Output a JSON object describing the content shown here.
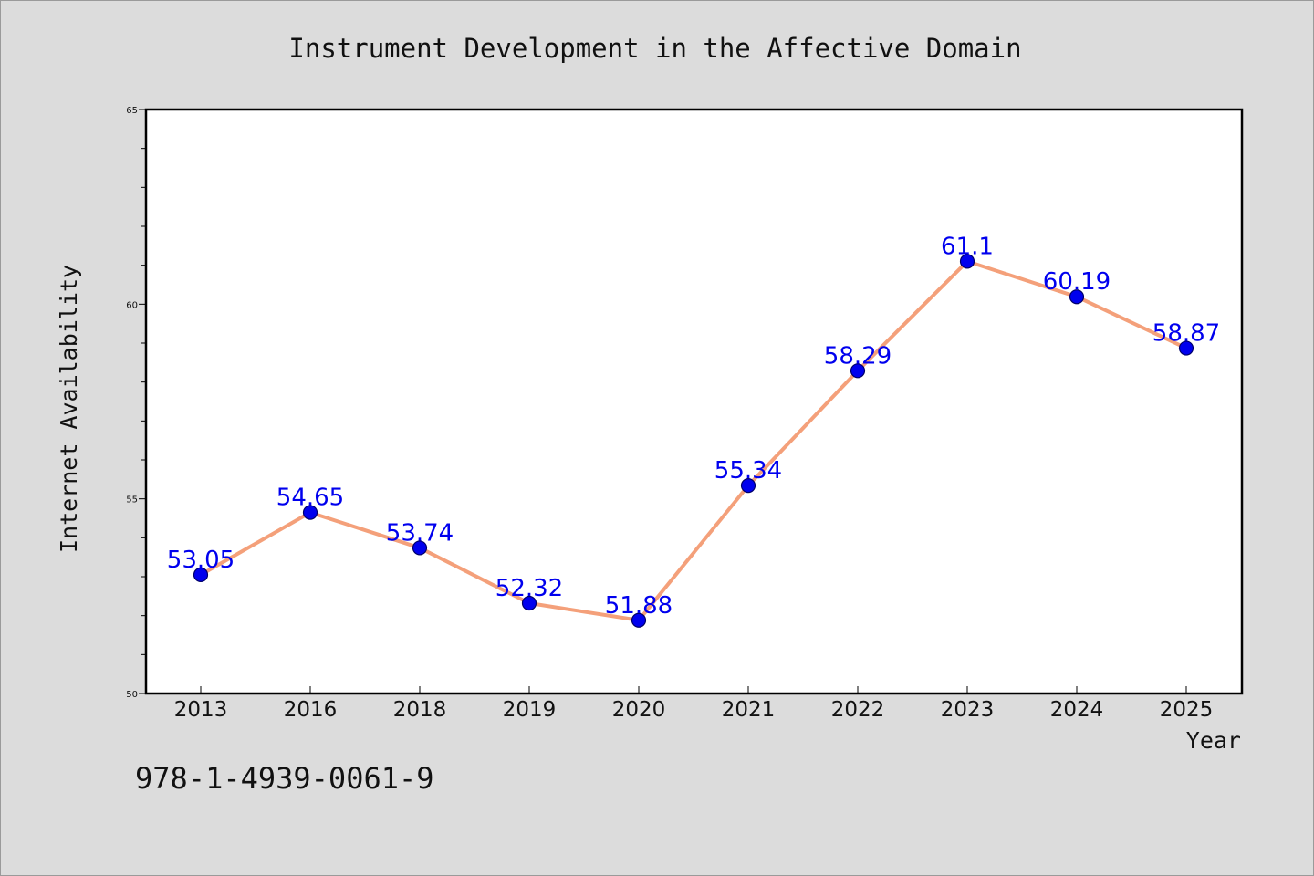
{
  "chart_data": {
    "type": "line",
    "title": "Instrument Development in the Affective Domain",
    "xlabel": "Year",
    "ylabel": "Internet Availability",
    "categories": [
      "2013",
      "2016",
      "2018",
      "2019",
      "2020",
      "2021",
      "2022",
      "2023",
      "2024",
      "2025"
    ],
    "series": [
      {
        "values": [
          53.05,
          54.65,
          53.74,
          52.32,
          51.88,
          55.34,
          58.29,
          61.1,
          60.19,
          58.87
        ]
      }
    ],
    "data_labels": [
      "53.05",
      "54.65",
      "53.74",
      "52.32",
      "51.88",
      "55.34",
      "58.29",
      "61.1",
      "60.19",
      "58.87"
    ],
    "ylim": [
      50,
      65
    ],
    "y_major_ticks": [
      50,
      55,
      60,
      65
    ],
    "y_minor_step": 1,
    "grid": false,
    "legend": "none",
    "colors": {
      "line": "#f4a07a",
      "marker": "#0000ee",
      "marker_edge": "#00006a",
      "data_label": "#0000ee",
      "background": "#dcdcdc",
      "plot_background": "#ffffff"
    }
  },
  "footer": {
    "isbn": "978-1-4939-0061-9"
  }
}
